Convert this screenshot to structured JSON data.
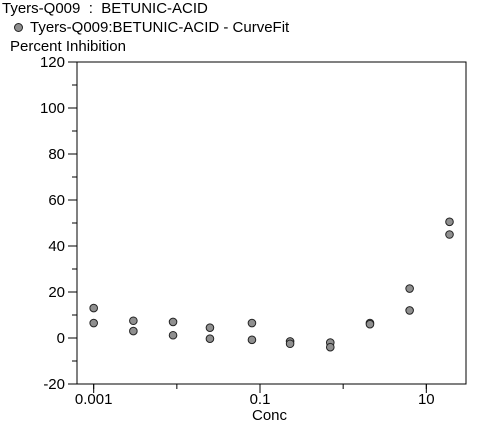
{
  "header": {
    "title": "Tyers-Q009  :  BETUNIC-ACID",
    "legend_label": "Tyers-Q009:BETUNIC-ACID - CurveFit",
    "y_axis_label": "Percent Inhibition"
  },
  "chart_data": {
    "type": "scatter",
    "xlabel": "Conc",
    "ylabel": "Percent Inhibition",
    "x_scale": "log",
    "xlim": [
      0.00063,
      30
    ],
    "ylim": [
      -20,
      120
    ],
    "x_ticks": [
      {
        "value": 0.001,
        "label": "0.001"
      },
      {
        "value": 0.1,
        "label": "0.1"
      },
      {
        "value": 10,
        "label": "10"
      }
    ],
    "y_ticks": [
      -20,
      0,
      20,
      40,
      60,
      80,
      100,
      120
    ],
    "legend": "top-left",
    "grid": false,
    "series": [
      {
        "name": "Tyers-Q009:BETUNIC-ACID - CurveFit",
        "color": "#8f8f8f",
        "points": [
          {
            "x": 0.001,
            "y": 13
          },
          {
            "x": 0.001,
            "y": 6.5
          },
          {
            "x": 0.003,
            "y": 7.5
          },
          {
            "x": 0.003,
            "y": 3
          },
          {
            "x": 0.009,
            "y": 7
          },
          {
            "x": 0.009,
            "y": 1.2
          },
          {
            "x": 0.025,
            "y": 4.5
          },
          {
            "x": 0.025,
            "y": -0.3
          },
          {
            "x": 0.08,
            "y": 6.5
          },
          {
            "x": 0.08,
            "y": -0.8
          },
          {
            "x": 0.23,
            "y": -1.5
          },
          {
            "x": 0.23,
            "y": -2.5
          },
          {
            "x": 0.7,
            "y": -2
          },
          {
            "x": 0.7,
            "y": -4
          },
          {
            "x": 2.1,
            "y": 6.5
          },
          {
            "x": 2.1,
            "y": 6
          },
          {
            "x": 6.3,
            "y": 21.5
          },
          {
            "x": 6.3,
            "y": 12
          },
          {
            "x": 19,
            "y": 50.5
          },
          {
            "x": 19,
            "y": 45
          }
        ]
      }
    ]
  }
}
